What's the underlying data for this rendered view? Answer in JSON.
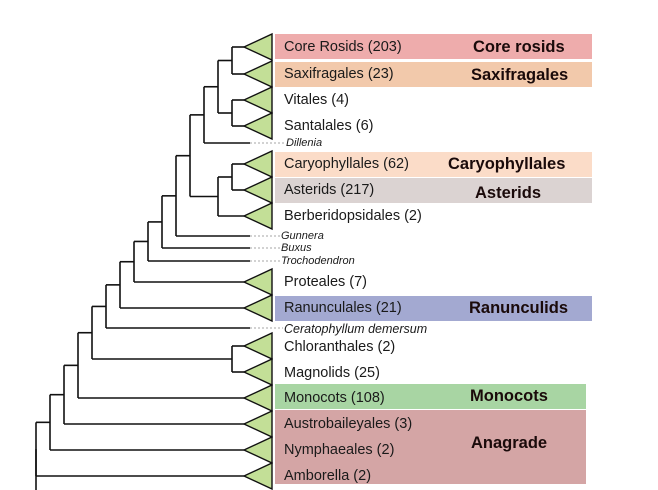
{
  "colors": {
    "core_rosids": "#eeacac",
    "saxifragales": "#f2c9ab",
    "caryophyllales": "#fbdcc8",
    "asterids": "#dbd3d2",
    "ranunculids": "#a3a9d1",
    "monocots": "#a8d5a3",
    "anagrade": "#d4a5a5",
    "triangle_fill": "#c3df97",
    "line": "#111111"
  },
  "taxa": {
    "core_rosids": "Core Rosids (203)",
    "saxifragales": "Saxifragales (23)",
    "vitales": "Vitales (4)",
    "santalales": "Santalales (6)",
    "dillenia": "Dillenia",
    "caryophyllales": "Caryophyllales (62)",
    "asterids": "Asterids (217)",
    "berberidopsidales": "Berberidopsidales (2)",
    "gunnera": "Gunnera",
    "buxus": "Buxus",
    "trochodendron": "Trochodendron",
    "proteales": "Proteales (7)",
    "ranunculales": "Ranunculales (21)",
    "ceratophyllum": "Ceratophyllum demersum",
    "chloranthales": "Chloranthales (2)",
    "magnolids": "Magnolids (25)",
    "monocots": "Monocots (108)",
    "austrobaileyales": "Austrobaileyales (3)",
    "nymphaeales": "Nymphaeales (2)",
    "amborella": "Amborella (2)"
  },
  "groups": {
    "core_rosids": "Core rosids",
    "saxifragales": "Saxifragales",
    "caryophyllales": "Caryophyllales",
    "asterids": "Asterids",
    "ranunculids": "Ranunculids",
    "monocots": "Monocots",
    "anagrade": "Anagrade"
  }
}
